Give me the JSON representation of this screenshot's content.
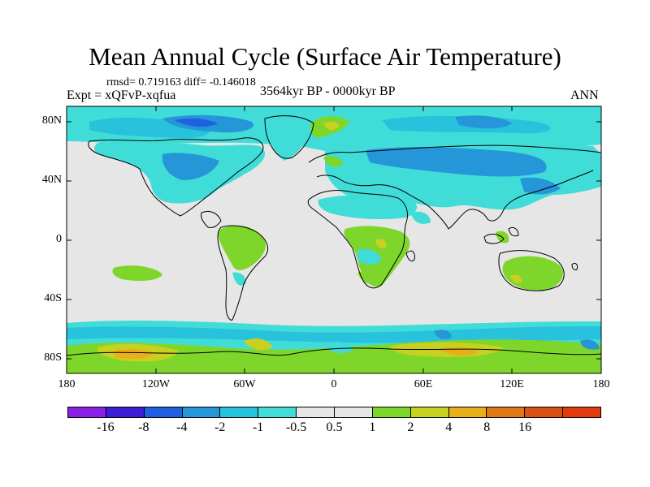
{
  "title": "Mean Annual Cycle (Surface Air Temperature)",
  "stats": "rmsd= 0.719163 diff= -0.146018",
  "experiment": "Expt = xQFvP-xqfua",
  "period": "3564kyr BP - 0000kyr BP",
  "season": "ANN",
  "y_axis": {
    "ticks": [
      "80N",
      "40N",
      "0",
      "40S",
      "80S"
    ]
  },
  "x_axis": {
    "ticks": [
      "180",
      "120W",
      "60W",
      "0",
      "60E",
      "120E",
      "180"
    ]
  },
  "legend": {
    "colors": [
      "#8a20e8",
      "#3a1fd6",
      "#1f5fe0",
      "#2596d8",
      "#28c2dc",
      "#40dcd8",
      "#e6e6e6",
      "#e6e6e6",
      "#7fd62a",
      "#c8d020",
      "#e8b018",
      "#e07818",
      "#d85012",
      "#e03a0e"
    ],
    "labels": [
      "-16",
      "-8",
      "-4",
      "-2",
      "-1",
      "-0.5",
      "0.5",
      "1",
      "2",
      "4",
      "8",
      "16"
    ]
  },
  "colors": {
    "background": "#e6e6e6",
    "light_cyan": "#40dcd8",
    "cyan": "#28c2dc",
    "blue": "#2596d8",
    "dark_blue": "#1f5fe0",
    "green": "#7fd62a",
    "yellow": "#c8d020",
    "orange": "#e8b018"
  }
}
